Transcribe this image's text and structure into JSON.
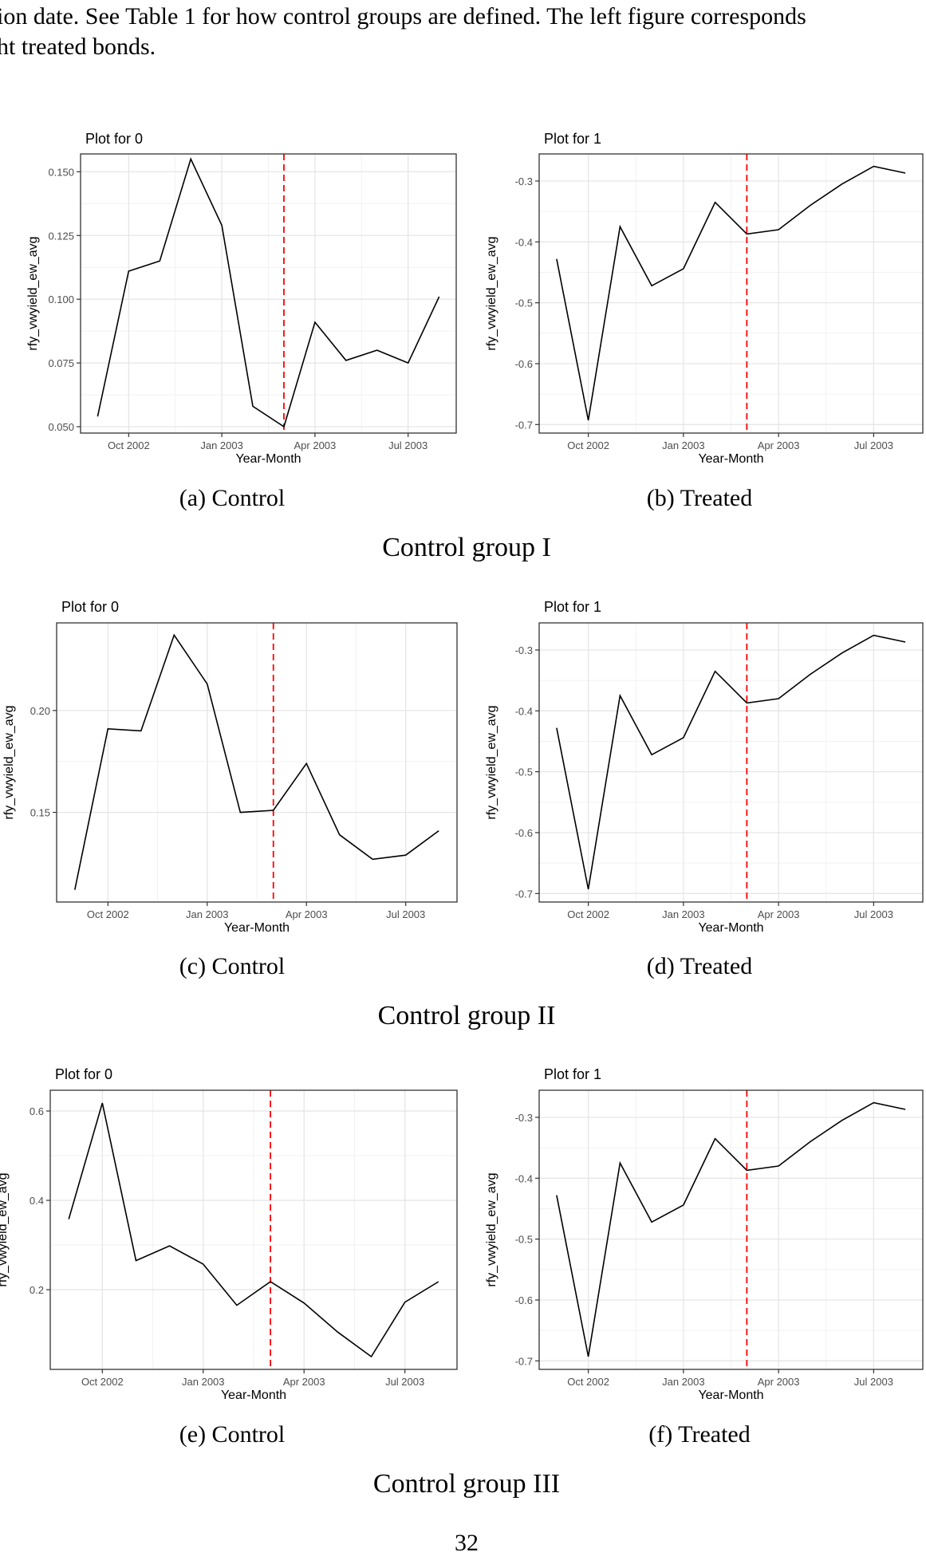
{
  "intro": {
    "line1": "ion date. See Table 1 for how control groups are defined. The left figure corresponds",
    "line2": "ht treated bonds."
  },
  "page_number": "32",
  "chart_data": [
    {
      "type": "line",
      "id": "a",
      "title": "Plot for 0",
      "xlabel": "Year-Month",
      "ylabel": "rfy_vwyield_ew_avg",
      "x": [
        0,
        1,
        2,
        3,
        4,
        5,
        6,
        7,
        8,
        9,
        10,
        11
      ],
      "values": [
        0.054,
        0.111,
        0.115,
        0.155,
        0.129,
        0.058,
        0.05,
        0.091,
        0.076,
        0.08,
        0.075,
        0.101
      ],
      "xlim": [
        -0.55,
        11.55
      ],
      "ylim": [
        0.0475,
        0.157
      ],
      "yticks": [
        0.05,
        0.075,
        0.1,
        0.125,
        0.15
      ],
      "ytick_labels": [
        "0.050",
        "0.075",
        "0.100",
        "0.125",
        "0.150"
      ],
      "xticks": [
        1,
        4,
        7,
        10
      ],
      "xtick_labels": [
        "Oct 2002",
        "Jan 2003",
        "Apr 2003",
        "Jul 2003"
      ],
      "vline": 6,
      "vline_color": "#ff0000",
      "caption": "(a) Control"
    },
    {
      "type": "line",
      "id": "b",
      "title": "Plot for 1",
      "xlabel": "Year-Month",
      "ylabel": "rfy_vwyield_ew_avg",
      "x": [
        0,
        1,
        2,
        3,
        4,
        5,
        6,
        7,
        8,
        9,
        10,
        11
      ],
      "values": [
        -0.428,
        -0.693,
        -0.375,
        -0.472,
        -0.444,
        -0.335,
        -0.387,
        -0.38,
        -0.34,
        -0.305,
        -0.276,
        -0.287
      ],
      "xlim": [
        -0.55,
        11.55
      ],
      "ylim": [
        -0.714,
        -0.2555
      ],
      "yticks": [
        -0.7,
        -0.6,
        -0.5,
        -0.4,
        -0.3
      ],
      "ytick_labels": [
        "-0.7",
        "-0.6",
        "-0.5",
        "-0.4",
        "-0.3"
      ],
      "xticks": [
        1,
        4,
        7,
        10
      ],
      "xtick_labels": [
        "Oct 2002",
        "Jan 2003",
        "Apr 2003",
        "Jul 2003"
      ],
      "vline": 6,
      "vline_color": "#ff0000",
      "caption": "(b) Treated"
    },
    {
      "type": "line",
      "id": "c",
      "title": "Plot for 0",
      "xlabel": "Year-Month",
      "ylabel": "rfy_vwyield_ew_avg",
      "x": [
        0,
        1,
        2,
        3,
        4,
        5,
        6,
        7,
        8,
        9,
        10,
        11
      ],
      "values": [
        0.112,
        0.191,
        0.19,
        0.237,
        0.213,
        0.15,
        0.151,
        0.174,
        0.139,
        0.127,
        0.129,
        0.141
      ],
      "xlim": [
        -0.55,
        11.55
      ],
      "ylim": [
        0.106,
        0.243
      ],
      "yticks": [
        0.15,
        0.2
      ],
      "ytick_labels": [
        "0.15",
        "0.20"
      ],
      "xticks": [
        1,
        4,
        7,
        10
      ],
      "xtick_labels": [
        "Oct 2002",
        "Jan 2003",
        "Apr 2003",
        "Jul 2003"
      ],
      "vline": 6,
      "vline_color": "#ff0000",
      "caption": "(c) Control"
    },
    {
      "type": "line",
      "id": "d",
      "title": "Plot for 1",
      "xlabel": "Year-Month",
      "ylabel": "rfy_vwyield_ew_avg",
      "x": [
        0,
        1,
        2,
        3,
        4,
        5,
        6,
        7,
        8,
        9,
        10,
        11
      ],
      "values": [
        -0.428,
        -0.693,
        -0.375,
        -0.472,
        -0.444,
        -0.335,
        -0.387,
        -0.38,
        -0.34,
        -0.305,
        -0.276,
        -0.287
      ],
      "xlim": [
        -0.55,
        11.55
      ],
      "ylim": [
        -0.714,
        -0.2555
      ],
      "yticks": [
        -0.7,
        -0.6,
        -0.5,
        -0.4,
        -0.3
      ],
      "ytick_labels": [
        "-0.7",
        "-0.6",
        "-0.5",
        "-0.4",
        "-0.3"
      ],
      "xticks": [
        1,
        4,
        7,
        10
      ],
      "xtick_labels": [
        "Oct 2002",
        "Jan 2003",
        "Apr 2003",
        "Jul 2003"
      ],
      "vline": 6,
      "vline_color": "#ff0000",
      "caption": "(d) Treated"
    },
    {
      "type": "line",
      "id": "e",
      "title": "Plot for 0",
      "xlabel": "Year-Month",
      "ylabel": "rfy_vwyield_ew_avg",
      "x": [
        0,
        1,
        2,
        3,
        4,
        5,
        6,
        7,
        8,
        9,
        10,
        11
      ],
      "values": [
        0.358,
        0.618,
        0.265,
        0.298,
        0.257,
        0.165,
        0.218,
        0.17,
        0.105,
        0.05,
        0.172,
        0.218
      ],
      "xlim": [
        -0.55,
        11.55
      ],
      "ylim": [
        0.0215,
        0.6465
      ],
      "yticks": [
        0.2,
        0.4,
        0.6
      ],
      "ytick_labels": [
        "0.2",
        "0.4",
        "0.6"
      ],
      "xticks": [
        1,
        4,
        7,
        10
      ],
      "xtick_labels": [
        "Oct 2002",
        "Jan 2003",
        "Apr 2003",
        "Jul 2003"
      ],
      "vline": 6,
      "vline_color": "#ff0000",
      "caption": "(e) Control"
    },
    {
      "type": "line",
      "id": "f",
      "title": "Plot for 1",
      "xlabel": "Year-Month",
      "ylabel": "rfy_vwyield_ew_avg",
      "x": [
        0,
        1,
        2,
        3,
        4,
        5,
        6,
        7,
        8,
        9,
        10,
        11
      ],
      "values": [
        -0.428,
        -0.693,
        -0.375,
        -0.472,
        -0.444,
        -0.335,
        -0.387,
        -0.38,
        -0.34,
        -0.305,
        -0.276,
        -0.287
      ],
      "xlim": [
        -0.55,
        11.55
      ],
      "ylim": [
        -0.714,
        -0.2555
      ],
      "yticks": [
        -0.7,
        -0.6,
        -0.5,
        -0.4,
        -0.3
      ],
      "ytick_labels": [
        "-0.7",
        "-0.6",
        "-0.5",
        "-0.4",
        "-0.3"
      ],
      "xticks": [
        1,
        4,
        7,
        10
      ],
      "xtick_labels": [
        "Oct 2002",
        "Jan 2003",
        "Apr 2003",
        "Jul 2003"
      ],
      "vline": 6,
      "vline_color": "#ff0000",
      "caption": "(f) Treated"
    }
  ],
  "groups": [
    {
      "caption": "Control group I"
    },
    {
      "caption": "Control group II"
    },
    {
      "caption": "Control group III"
    }
  ]
}
